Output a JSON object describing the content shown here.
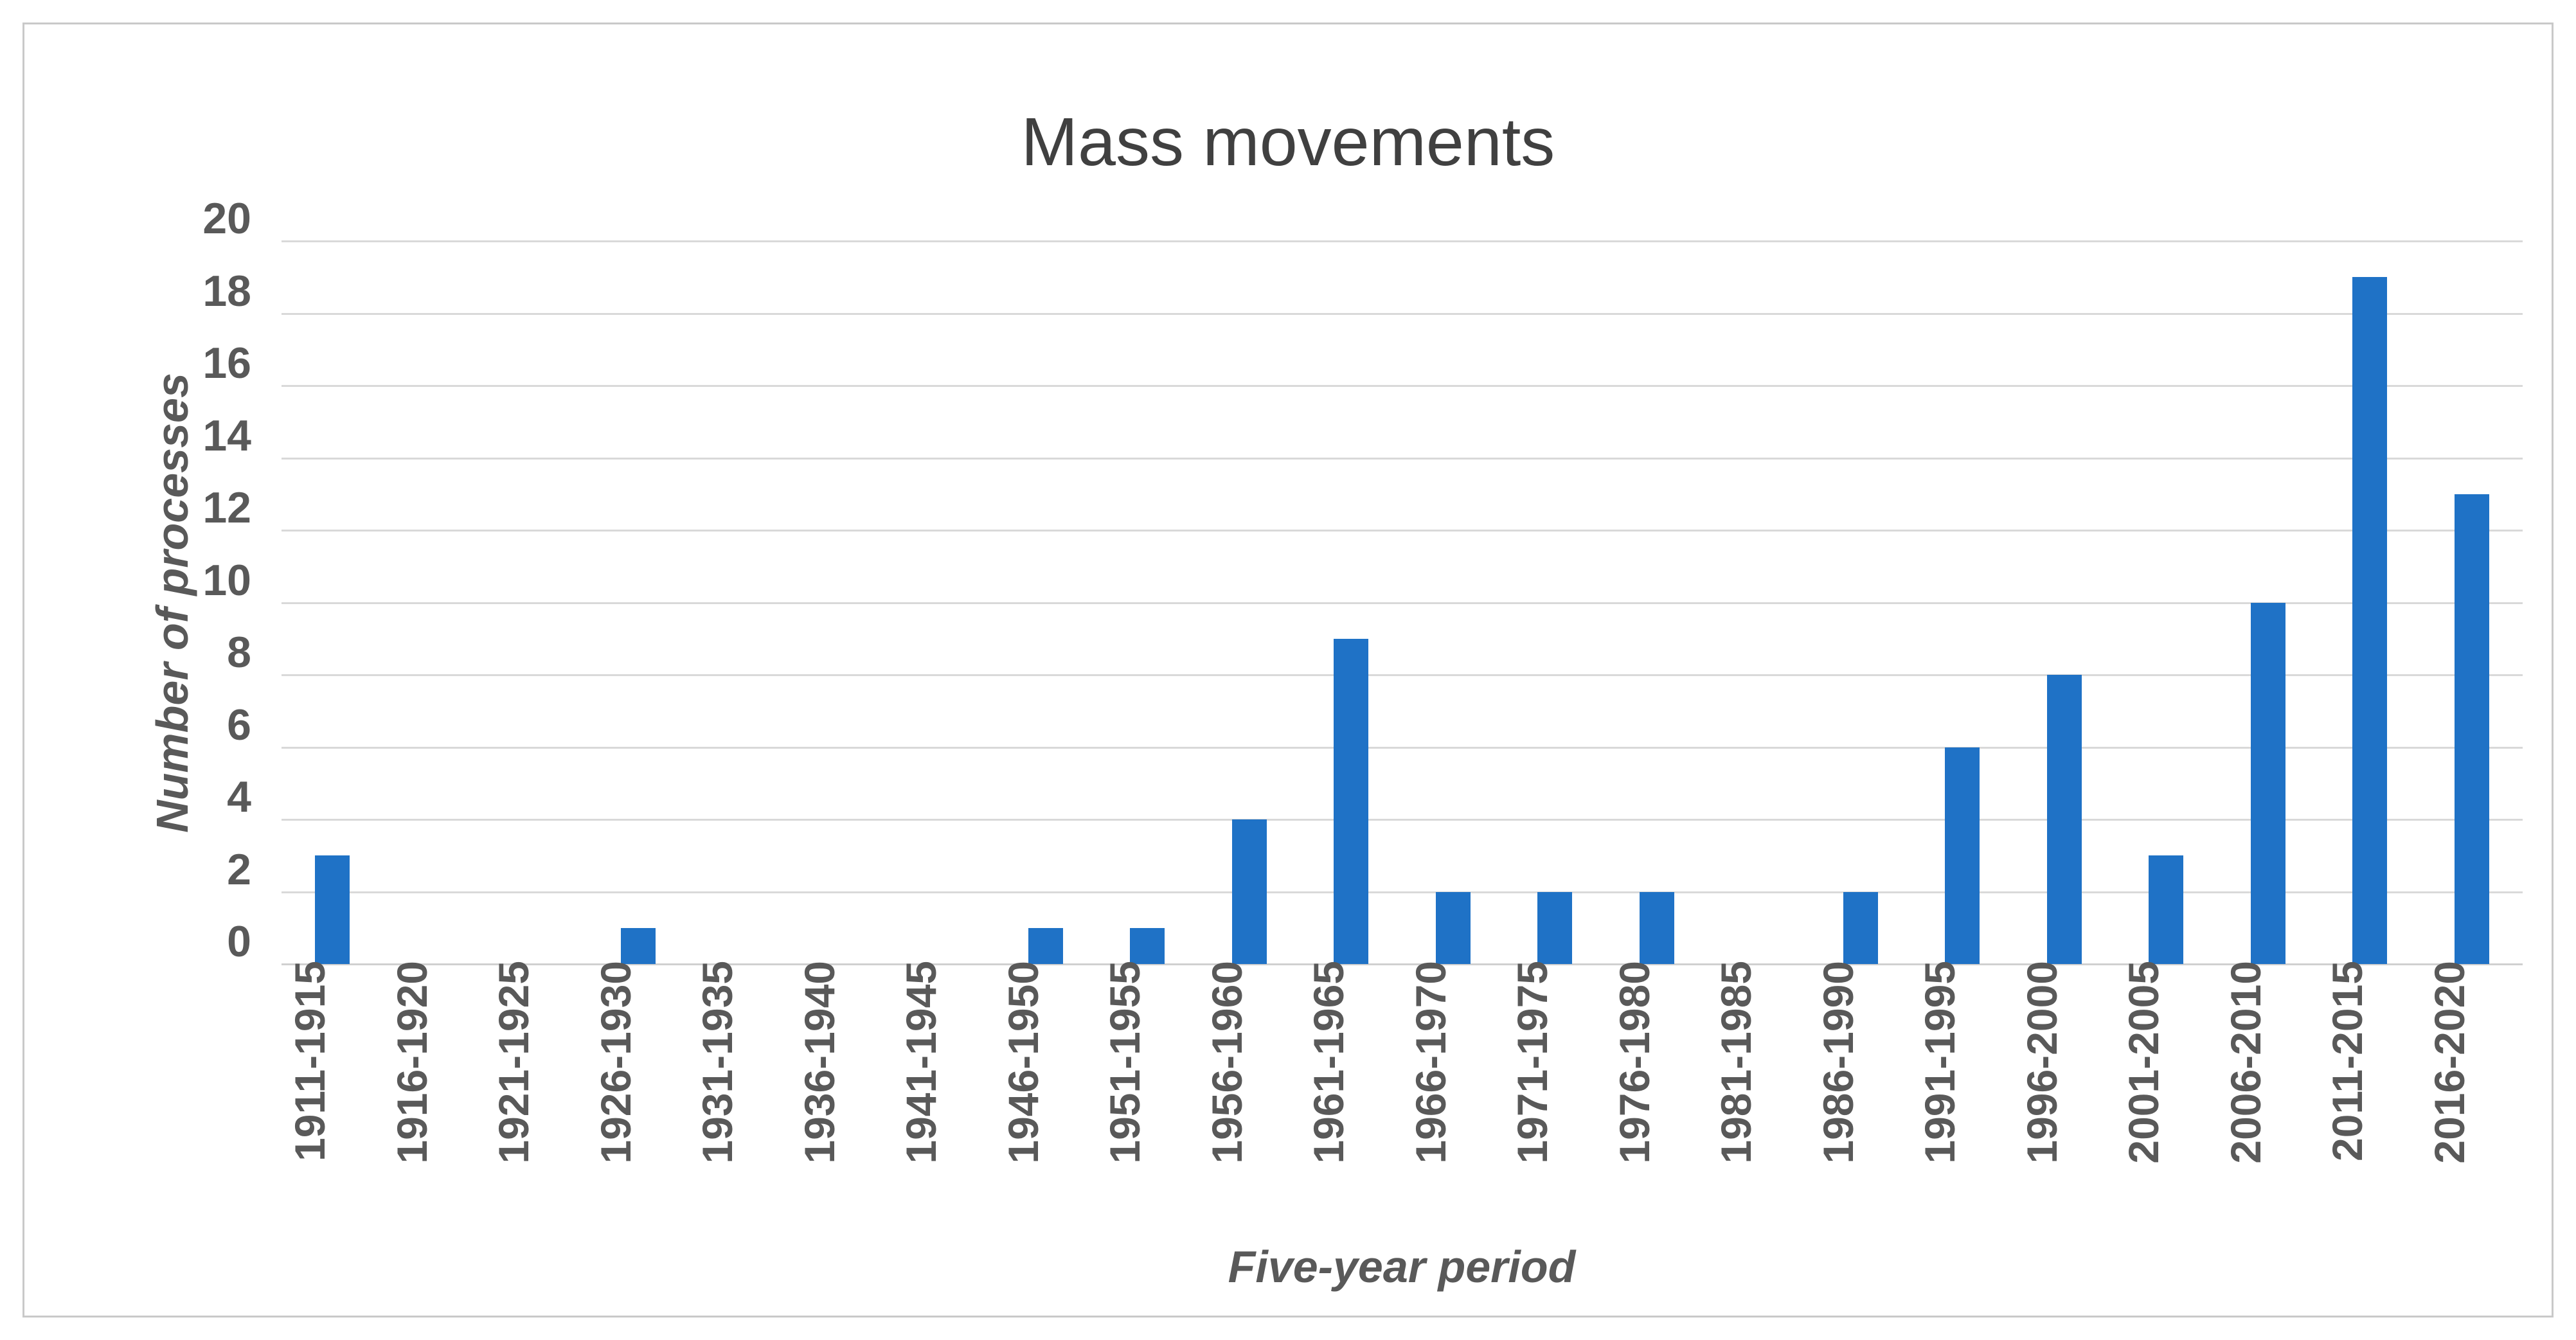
{
  "chart_data": {
    "type": "bar",
    "title": "Mass movements",
    "xlabel": "Five-year period",
    "ylabel": "Number of processes",
    "categories": [
      "1911-1915",
      "1916-1920",
      "1921-1925",
      "1926-1930",
      "1931-1935",
      "1936-1940",
      "1941-1945",
      "1946-1950",
      "1951-1955",
      "1956-1960",
      "1961-1965",
      "1966-1970",
      "1971-1975",
      "1976-1980",
      "1981-1985",
      "1986-1990",
      "1991-1995",
      "1996-2000",
      "2001-2005",
      "2006-2010",
      "2011-2015",
      "2016-2020"
    ],
    "values": [
      3,
      0,
      0,
      1,
      0,
      0,
      0,
      1,
      1,
      4,
      9,
      2,
      2,
      2,
      0,
      2,
      6,
      8,
      3,
      10,
      19,
      13
    ],
    "ylim": [
      0,
      20
    ],
    "yticks": [
      0,
      2,
      4,
      6,
      8,
      10,
      12,
      14,
      16,
      18,
      20
    ],
    "grid": "horizontal-only",
    "legend": "none",
    "colors": {
      "bar": "#1f72c6",
      "gridline": "#d9d9d9",
      "axis_text": "#595959",
      "title_text": "#404040",
      "frame_border": "#c9c9c9"
    }
  }
}
